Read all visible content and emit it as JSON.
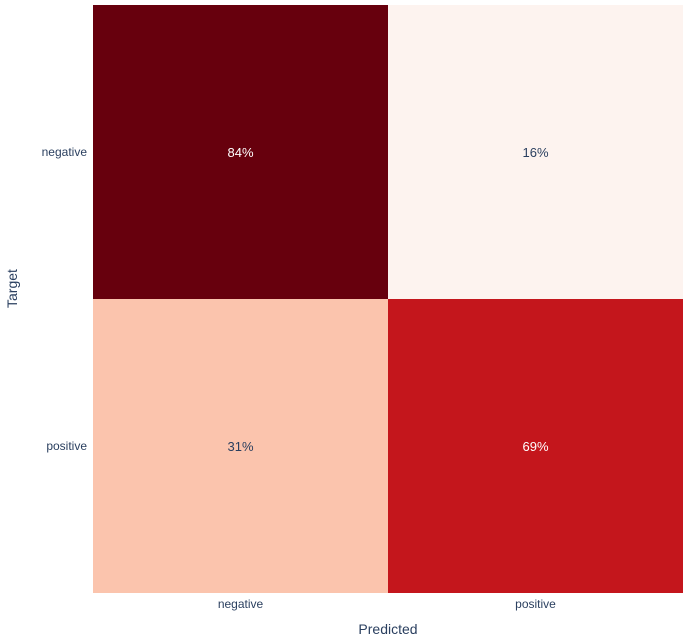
{
  "figure": {
    "background": "#ffffff",
    "font_color": "#2a3f5f"
  },
  "chart_data": {
    "type": "heatmap",
    "subtype": "confusion-matrix",
    "title": "",
    "xlabel": "Predicted",
    "ylabel": "Target",
    "x_categories": [
      "negative",
      "positive"
    ],
    "y_categories": [
      "negative",
      "positive"
    ],
    "values_percent": [
      [
        84,
        16
      ],
      [
        31,
        69
      ]
    ],
    "colorscale": "Reds",
    "legend_position": "none",
    "grid": false,
    "cells": [
      {
        "target": "negative",
        "predicted": "negative",
        "value": 84,
        "label": "84%",
        "bg": "#67000d",
        "text_color": "#ffffff"
      },
      {
        "target": "negative",
        "predicted": "positive",
        "value": 16,
        "label": "16%",
        "bg": "#fdf3ef",
        "text_color": "#2a3f5f"
      },
      {
        "target": "positive",
        "predicted": "negative",
        "value": 31,
        "label": "31%",
        "bg": "#fbc4ad",
        "text_color": "#2a3f5f"
      },
      {
        "target": "positive",
        "predicted": "positive",
        "value": 69,
        "label": "69%",
        "bg": "#c4161c",
        "text_color": "#ffffff"
      }
    ]
  }
}
